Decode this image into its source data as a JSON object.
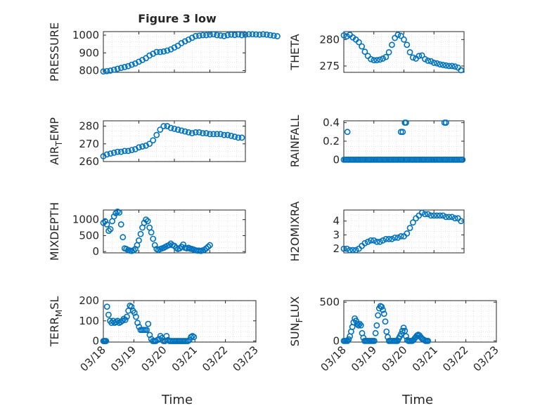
{
  "figure": {
    "title": "Figure 3 low",
    "x_label": "Time",
    "marker_color": "#0072BD",
    "axes_color": "#262626",
    "grid_color": "#dcdcdc"
  },
  "chart_data": [
    {
      "type": "scatter",
      "panel": "top-left",
      "title": "Figure 3 low",
      "ylabel": "PRESSURE",
      "xlim": [
        "03/18",
        "03/22"
      ],
      "ylim": [
        790,
        1020
      ],
      "yticks": [
        800,
        900,
        1000
      ],
      "xticks": [],
      "x_day_start": 18.0,
      "x_day_step": 0.1,
      "values": [
        795,
        797,
        800,
        805,
        810,
        815,
        820,
        825,
        833,
        840,
        850,
        860,
        870,
        885,
        895,
        905,
        905,
        908,
        913,
        920,
        930,
        940,
        955,
        965,
        975,
        985,
        995,
        997,
        1000,
        1000,
        1003,
        1005,
        1000,
        998,
        995,
        1000,
        1003,
        1001,
        1004,
        1000,
        1003,
        1005,
        1005,
        1004,
        1003,
        1005,
        1003,
        1000,
        997,
        994
      ]
    },
    {
      "type": "scatter",
      "panel": "top-right",
      "ylabel": "THETA",
      "xlim": [
        "03/18",
        "03/22"
      ],
      "ylim": [
        273.8,
        281.5
      ],
      "yticks": [
        275,
        280
      ],
      "xticks": [],
      "x_day_start": 18.0,
      "x_day_step": 0.1,
      "values": [
        280.8,
        280.6,
        280.9,
        280.4,
        280.0,
        279.5,
        278.7,
        277.7,
        276.9,
        276.3,
        276.1,
        276.1,
        276.2,
        276.4,
        276.7,
        277.6,
        279.0,
        280.3,
        280.9,
        280.7,
        280.0,
        279.0,
        277.6,
        276.6,
        276.4,
        276.9,
        277.0,
        276.3,
        276.0,
        275.9,
        275.6,
        275.5,
        275.3,
        275.2,
        275.1,
        275.0,
        275.0,
        274.9,
        274.7,
        274.2
      ]
    },
    {
      "type": "scatter",
      "panel": "second-left",
      "ylabel": "AIR_TEMP",
      "ylabel_main": "AIR",
      "ylabel_sub": "T",
      "ylabel_rest": "EMP",
      "xlim": [
        "03/18",
        "03/22"
      ],
      "ylim": [
        260,
        283
      ],
      "yticks": [
        260,
        270,
        280
      ],
      "xticks": [],
      "x_day_start": 18.0,
      "x_day_step": 0.1,
      "values": [
        263,
        264,
        264.5,
        265,
        265.5,
        265.5,
        266,
        266,
        266.5,
        267,
        268,
        268.5,
        269,
        270,
        272,
        275,
        278,
        280,
        280,
        279,
        278.5,
        278,
        277.5,
        277,
        276.5,
        276,
        276.5,
        276.5,
        276,
        276,
        275.5,
        275.5,
        275.5,
        275.5,
        275,
        275,
        274.5,
        274,
        273.5,
        273.5
      ]
    },
    {
      "type": "scatter",
      "panel": "second-right",
      "ylabel": "RAINFALL",
      "xlim": [
        "03/18",
        "03/22"
      ],
      "ylim": [
        -0.02,
        0.42
      ],
      "yticks": [
        0,
        0.2,
        0.4
      ],
      "ytick_labels": [
        "0",
        "0.2",
        "0.4"
      ],
      "xticks": [],
      "zero_days": [
        18.0,
        18.05,
        18.1,
        18.15,
        18.2,
        18.25,
        18.3,
        18.35,
        18.4,
        18.45,
        18.5,
        18.55,
        18.6,
        18.65,
        18.7,
        18.75,
        18.8,
        18.85,
        18.9,
        18.95,
        19.0,
        19.05,
        19.1,
        19.15,
        19.2,
        19.25,
        19.3,
        19.35,
        19.4,
        19.45,
        19.5,
        19.55,
        19.6,
        19.65,
        19.7,
        19.75,
        19.8,
        19.85,
        19.9,
        19.95,
        20.0,
        20.05,
        20.1,
        20.15,
        20.2,
        20.25,
        20.3,
        20.35,
        20.4,
        20.45,
        20.5,
        20.55,
        20.6,
        20.65,
        20.7,
        20.75,
        20.8,
        20.85,
        20.9,
        20.95,
        21.0,
        21.05,
        21.1,
        21.15,
        21.2,
        21.25,
        21.3,
        21.35,
        21.4,
        21.45,
        21.5,
        21.55,
        21.6,
        21.65,
        21.7,
        21.75,
        21.8,
        21.85,
        21.9,
        21.95
      ],
      "events": [
        {
          "day": 18.12,
          "value": 0.3
        },
        {
          "day": 19.9,
          "value": 0.3
        },
        {
          "day": 19.96,
          "value": 0.3
        },
        {
          "day": 20.03,
          "value": 0.4
        },
        {
          "day": 20.07,
          "value": 0.4
        },
        {
          "day": 21.35,
          "value": 0.4
        },
        {
          "day": 21.4,
          "value": 0.4
        }
      ]
    },
    {
      "type": "scatter",
      "panel": "third-left",
      "ylabel": "MIXDEPTH",
      "xlim": [
        "03/18",
        "03/22"
      ],
      "ylim": [
        -40,
        1300
      ],
      "yticks": [
        0,
        500,
        1000
      ],
      "xticks": [],
      "points": [
        [
          18.0,
          900
        ],
        [
          18.05,
          950
        ],
        [
          18.1,
          850
        ],
        [
          18.15,
          650
        ],
        [
          18.2,
          700
        ],
        [
          18.25,
          950
        ],
        [
          18.3,
          1100
        ],
        [
          18.35,
          1200
        ],
        [
          18.4,
          1250
        ],
        [
          18.45,
          1220
        ],
        [
          18.5,
          850
        ],
        [
          18.55,
          450
        ],
        [
          18.6,
          100
        ],
        [
          18.65,
          80
        ],
        [
          18.7,
          50
        ],
        [
          18.75,
          30
        ],
        [
          18.8,
          20
        ],
        [
          18.85,
          40
        ],
        [
          18.9,
          80
        ],
        [
          18.95,
          200
        ],
        [
          19.0,
          350
        ],
        [
          19.05,
          550
        ],
        [
          19.1,
          750
        ],
        [
          19.15,
          900
        ],
        [
          19.2,
          1000
        ],
        [
          19.25,
          950
        ],
        [
          19.3,
          750
        ],
        [
          19.35,
          600
        ],
        [
          19.4,
          400
        ],
        [
          19.45,
          200
        ],
        [
          19.5,
          80
        ],
        [
          19.55,
          50
        ],
        [
          19.6,
          80
        ],
        [
          19.65,
          100
        ],
        [
          19.7,
          120
        ],
        [
          19.75,
          150
        ],
        [
          19.8,
          180
        ],
        [
          19.85,
          200
        ],
        [
          19.9,
          250
        ],
        [
          19.95,
          200
        ],
        [
          20.0,
          180
        ],
        [
          20.05,
          120
        ],
        [
          20.1,
          80
        ],
        [
          20.15,
          100
        ],
        [
          20.2,
          150
        ],
        [
          20.25,
          220
        ],
        [
          20.3,
          120
        ],
        [
          20.35,
          100
        ],
        [
          20.4,
          120
        ],
        [
          20.45,
          90
        ],
        [
          20.5,
          80
        ],
        [
          20.55,
          60
        ],
        [
          20.6,
          40
        ],
        [
          20.65,
          30
        ],
        [
          20.7,
          30
        ],
        [
          20.75,
          20
        ],
        [
          20.8,
          40
        ],
        [
          20.85,
          60
        ],
        [
          20.9,
          100
        ],
        [
          20.95,
          150
        ],
        [
          21.0,
          200
        ]
      ]
    },
    {
      "type": "scatter",
      "panel": "third-right",
      "ylabel": "H2OMIXRA",
      "xlim": [
        "03/18",
        "03/22"
      ],
      "ylim": [
        1.7,
        4.8
      ],
      "yticks": [
        2,
        3,
        4
      ],
      "xticks": [],
      "x_day_start": 18.0,
      "x_day_step": 0.1,
      "values": [
        2.0,
        2.0,
        1.9,
        1.9,
        1.9,
        2.0,
        2.2,
        2.4,
        2.5,
        2.6,
        2.6,
        2.5,
        2.5,
        2.6,
        2.7,
        2.7,
        2.7,
        2.8,
        2.8,
        2.9,
        2.9,
        3.1,
        3.5,
        3.9,
        4.2,
        4.4,
        4.6,
        4.5,
        4.5,
        4.4,
        4.4,
        4.4,
        4.4,
        4.4,
        4.3,
        4.3,
        4.3,
        4.2,
        4.2,
        4.0
      ]
    },
    {
      "type": "scatter",
      "panel": "bottom-left",
      "ylabel": "TERR_MSL",
      "ylabel_main": "TERR",
      "ylabel_sub": "M",
      "ylabel_rest": "SL",
      "xlim": [
        "03/18",
        "03/23"
      ],
      "ylim": [
        -5,
        200
      ],
      "yticks": [
        0,
        100,
        200
      ],
      "xticks": [
        "03/18",
        "03/19",
        "03/20",
        "03/21",
        "03/22",
        "03/23"
      ],
      "points": [
        [
          18.0,
          0
        ],
        [
          18.03,
          0
        ],
        [
          18.06,
          0
        ],
        [
          18.09,
          0
        ],
        [
          18.12,
          170
        ],
        [
          18.17,
          130
        ],
        [
          18.22,
          100
        ],
        [
          18.27,
          90
        ],
        [
          18.32,
          100
        ],
        [
          18.37,
          90
        ],
        [
          18.42,
          95
        ],
        [
          18.47,
          100
        ],
        [
          18.52,
          90
        ],
        [
          18.57,
          95
        ],
        [
          18.62,
          100
        ],
        [
          18.67,
          110
        ],
        [
          18.72,
          105
        ],
        [
          18.77,
          120
        ],
        [
          18.82,
          150
        ],
        [
          18.87,
          175
        ],
        [
          18.92,
          170
        ],
        [
          18.97,
          150
        ],
        [
          19.02,
          140
        ],
        [
          19.07,
          120
        ],
        [
          19.12,
          90
        ],
        [
          19.17,
          70
        ],
        [
          19.22,
          55
        ],
        [
          19.27,
          55
        ],
        [
          19.32,
          55
        ],
        [
          19.37,
          55
        ],
        [
          19.42,
          55
        ],
        [
          19.47,
          85
        ],
        [
          19.52,
          30
        ],
        [
          19.57,
          10
        ],
        [
          19.62,
          0
        ],
        [
          19.67,
          0
        ],
        [
          19.72,
          0
        ],
        [
          19.77,
          5
        ],
        [
          19.82,
          10
        ],
        [
          19.87,
          25
        ],
        [
          19.92,
          15
        ],
        [
          19.97,
          0
        ],
        [
          20.02,
          0
        ],
        [
          20.07,
          25
        ],
        [
          20.12,
          5
        ],
        [
          20.17,
          0
        ],
        [
          20.22,
          0
        ],
        [
          20.27,
          0
        ],
        [
          20.32,
          0
        ],
        [
          20.37,
          0
        ],
        [
          20.42,
          0
        ],
        [
          20.47,
          0
        ],
        [
          20.52,
          0
        ],
        [
          20.57,
          0
        ],
        [
          20.62,
          0
        ],
        [
          20.67,
          0
        ],
        [
          20.72,
          0
        ],
        [
          20.77,
          0
        ],
        [
          20.82,
          5
        ],
        [
          20.87,
          20
        ],
        [
          20.92,
          25
        ],
        [
          20.97,
          20
        ]
      ]
    },
    {
      "type": "scatter",
      "panel": "bottom-right",
      "ylabel": "SUN_FLUX",
      "ylabel_main": "SUN",
      "ylabel_sub": "F",
      "ylabel_rest": "LUX",
      "xlim": [
        "03/18",
        "03/23"
      ],
      "ylim": [
        -15,
        520
      ],
      "yticks": [
        0,
        500
      ],
      "xticks": [
        "03/18",
        "03/19",
        "03/20",
        "03/21",
        "03/22",
        "03/23"
      ],
      "points": [
        [
          18.0,
          0
        ],
        [
          18.04,
          0
        ],
        [
          18.08,
          0
        ],
        [
          18.12,
          0
        ],
        [
          18.16,
          20
        ],
        [
          18.2,
          60
        ],
        [
          18.24,
          120
        ],
        [
          18.28,
          180
        ],
        [
          18.32,
          240
        ],
        [
          18.36,
          290
        ],
        [
          18.4,
          260
        ],
        [
          18.44,
          220
        ],
        [
          18.48,
          200
        ],
        [
          18.52,
          220
        ],
        [
          18.56,
          200
        ],
        [
          18.6,
          100
        ],
        [
          18.64,
          40
        ],
        [
          18.68,
          0
        ],
        [
          18.72,
          0
        ],
        [
          18.76,
          0
        ],
        [
          18.8,
          0
        ],
        [
          18.84,
          0
        ],
        [
          18.88,
          0
        ],
        [
          18.92,
          0
        ],
        [
          18.96,
          0
        ],
        [
          19.0,
          0
        ],
        [
          19.04,
          100
        ],
        [
          19.08,
          200
        ],
        [
          19.12,
          330
        ],
        [
          19.16,
          420
        ],
        [
          19.2,
          450
        ],
        [
          19.24,
          440
        ],
        [
          19.28,
          400
        ],
        [
          19.32,
          350
        ],
        [
          19.36,
          250
        ],
        [
          19.4,
          120
        ],
        [
          19.44,
          50
        ],
        [
          19.48,
          0
        ],
        [
          19.52,
          0
        ],
        [
          19.56,
          0
        ],
        [
          19.6,
          0
        ],
        [
          19.64,
          0
        ],
        [
          19.68,
          0
        ],
        [
          19.72,
          0
        ],
        [
          19.76,
          0
        ],
        [
          19.8,
          30
        ],
        [
          19.84,
          60
        ],
        [
          19.88,
          90
        ],
        [
          19.92,
          130
        ],
        [
          19.96,
          170
        ],
        [
          20.0,
          130
        ],
        [
          20.04,
          60
        ],
        [
          20.08,
          10
        ],
        [
          20.12,
          0
        ],
        [
          20.16,
          0
        ],
        [
          20.2,
          0
        ],
        [
          20.24,
          0
        ],
        [
          20.28,
          10
        ],
        [
          20.32,
          30
        ],
        [
          20.36,
          50
        ],
        [
          20.4,
          70
        ],
        [
          20.44,
          80
        ],
        [
          20.48,
          70
        ],
        [
          20.52,
          50
        ],
        [
          20.56,
          30
        ],
        [
          20.6,
          20
        ],
        [
          20.64,
          10
        ],
        [
          20.68,
          0
        ],
        [
          20.72,
          0
        ],
        [
          20.76,
          0
        ]
      ]
    }
  ]
}
